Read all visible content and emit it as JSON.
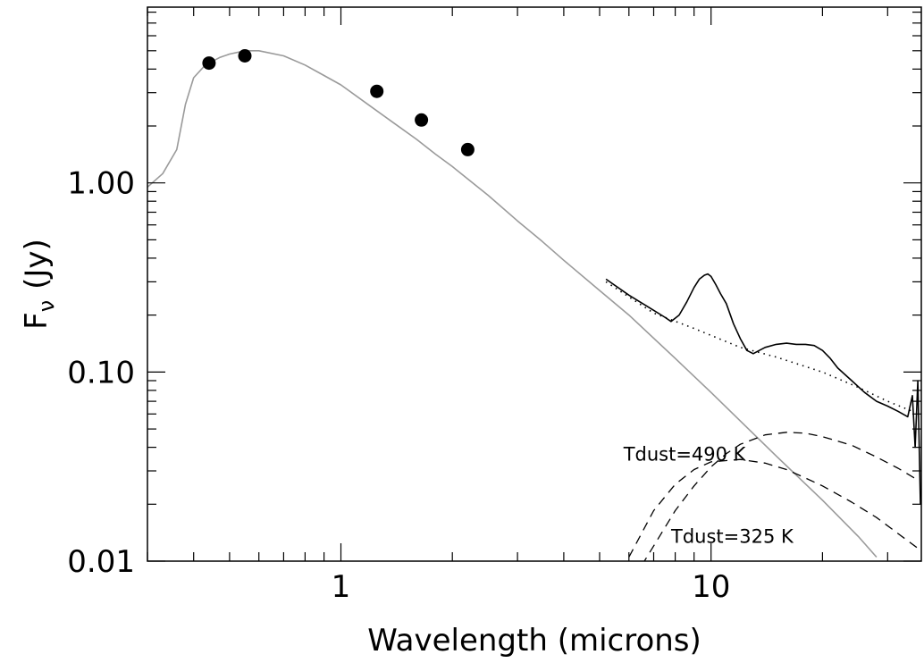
{
  "chart_data": {
    "type": "line",
    "xlabel": "Wavelength (microns)",
    "ylabel_main": "F",
    "ylabel_sub": "ν",
    "ylabel_unit": "(Jy)",
    "xscale": "log",
    "yscale": "log",
    "xlim": [
      0.3,
      37
    ],
    "ylim": [
      0.01,
      8.5
    ],
    "x_tick_labels": [
      {
        "value": 1,
        "label": "1"
      },
      {
        "value": 10,
        "label": "10"
      }
    ],
    "y_tick_labels": [
      {
        "value": 0.01,
        "label": "0.01"
      },
      {
        "value": 0.1,
        "label": "0.10"
      },
      {
        "value": 1,
        "label": "1.00"
      }
    ],
    "grid": false,
    "colors": {
      "model": "#9a9a9a",
      "spectrum": "#000000",
      "marker": "#000000"
    },
    "series": [
      {
        "style": "gray-solid",
        "x": [
          0.3,
          0.33,
          0.36,
          0.38,
          0.4,
          0.43,
          0.47,
          0.5,
          0.55,
          0.6,
          0.7,
          0.8,
          0.9,
          1.0,
          1.2,
          1.4,
          1.6,
          1.8,
          2.0,
          2.2,
          2.5,
          3.0,
          3.5,
          4.0,
          5.0,
          6.0,
          8.0,
          10,
          15,
          20,
          25,
          28
        ],
        "y": [
          0.95,
          1.12,
          1.5,
          2.6,
          3.6,
          4.2,
          4.6,
          4.8,
          5.0,
          5.0,
          4.7,
          4.2,
          3.7,
          3.3,
          2.55,
          2.05,
          1.7,
          1.42,
          1.22,
          1.05,
          0.86,
          0.63,
          0.49,
          0.39,
          0.27,
          0.2,
          0.118,
          0.078,
          0.036,
          0.021,
          0.0135,
          0.0105
        ]
      },
      {
        "style": "black-solid",
        "x": [
          5.2,
          6.0,
          7.0,
          7.5,
          7.8,
          8.2,
          8.6,
          9.0,
          9.3,
          9.6,
          9.8,
          10.0,
          10.3,
          10.6,
          11.0,
          11.5,
          12.0,
          12.5,
          13.0,
          13.5,
          14.0,
          15.0,
          16.0,
          17.0,
          18.0,
          19.0,
          20.0,
          21.0,
          22.0,
          24.0,
          26.0,
          28.0,
          30.0,
          32.0,
          34.0,
          35.0,
          35.6,
          36.2,
          36.8
        ],
        "y": [
          0.31,
          0.255,
          0.212,
          0.195,
          0.185,
          0.2,
          0.235,
          0.28,
          0.31,
          0.325,
          0.33,
          0.32,
          0.29,
          0.26,
          0.23,
          0.18,
          0.15,
          0.13,
          0.125,
          0.13,
          0.135,
          0.14,
          0.142,
          0.14,
          0.14,
          0.138,
          0.13,
          0.118,
          0.105,
          0.09,
          0.078,
          0.07,
          0.066,
          0.062,
          0.058,
          0.075,
          0.04,
          0.09,
          0.02
        ]
      },
      {
        "style": "black-dotted",
        "x": [
          5.2,
          7.0,
          9.0,
          12.0,
          15.0,
          20.0,
          25.0,
          30.0,
          35.0
        ],
        "y": [
          0.3,
          0.205,
          0.17,
          0.135,
          0.12,
          0.1,
          0.083,
          0.07,
          0.062
        ]
      },
      {
        "style": "black-dashed",
        "name": "Tdust=490 K",
        "x": [
          6.0,
          7.0,
          8.0,
          9.0,
          10.0,
          12.0,
          14.0,
          16.0,
          18.0,
          20.0,
          24.0,
          28.0,
          32.0,
          36.0
        ],
        "y": [
          0.0105,
          0.0185,
          0.0255,
          0.0305,
          0.0335,
          0.0345,
          0.033,
          0.0305,
          0.0275,
          0.025,
          0.0205,
          0.017,
          0.014,
          0.0118
        ]
      },
      {
        "style": "black-dashed",
        "name": "Tdust=325 K",
        "x": [
          6.5,
          7.5,
          8.0,
          9.0,
          10.0,
          11.0,
          12.0,
          14.0,
          16.0,
          18.0,
          20.0,
          24.0,
          28.0,
          32.0,
          36.0
        ],
        "y": [
          0.0095,
          0.015,
          0.0185,
          0.025,
          0.0315,
          0.037,
          0.0415,
          0.0465,
          0.048,
          0.0475,
          0.0455,
          0.041,
          0.0355,
          0.031,
          0.027
        ]
      }
    ],
    "photometry": {
      "x": [
        0.44,
        0.55,
        1.25,
        1.65,
        2.2
      ],
      "y": [
        4.3,
        4.7,
        3.05,
        2.15,
        1.5
      ]
    },
    "annotations": [
      {
        "text": "Tdust=490 K",
        "x": 5.8,
        "y": 0.034
      },
      {
        "text": "Tdust=325 K",
        "x": 7.8,
        "y": 0.0125
      }
    ]
  }
}
